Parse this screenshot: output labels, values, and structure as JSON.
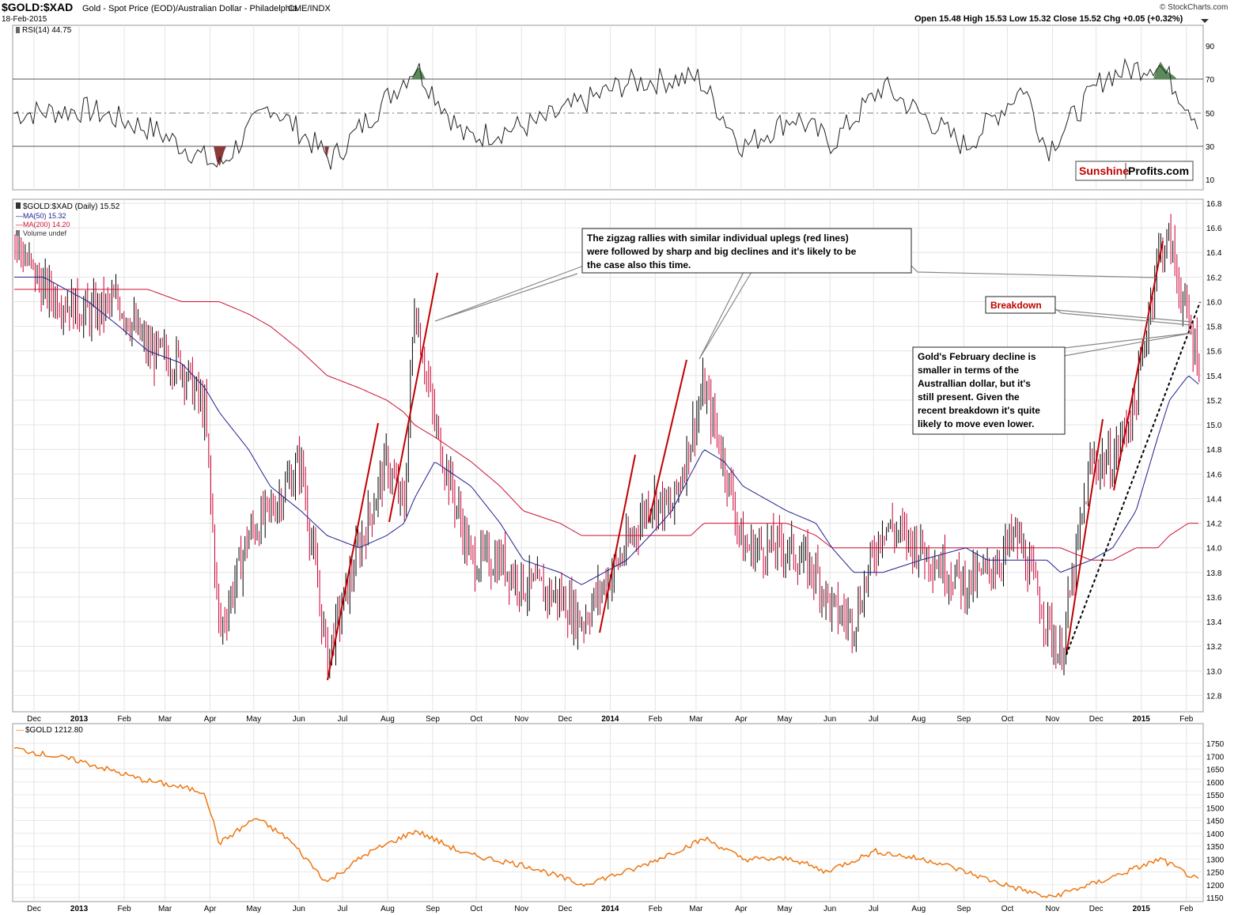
{
  "header": {
    "symbol": "$GOLD:$XAD",
    "description": "Gold - Spot Price (EOD)/Australian Dollar - Philadelphia",
    "exchange": "CME/INDX",
    "date": "18-Feb-2015",
    "ohlc": "Open 15.48  High 15.53  Low 15.32  Close 15.52  Chg +0.05 (+0.32%)",
    "watermark": "© StockCharts.com"
  },
  "rsi_panel": {
    "legend": "RSI(14) 44.75",
    "ticks": [
      "90",
      "70",
      "50",
      "30",
      "10"
    ],
    "logo_red": "Sunshine",
    "logo_black": "Profits.com"
  },
  "price_panel": {
    "legend_main": "$GOLD:$XAD (Daily) 15.52",
    "legend_ma50": "MA(50) 15.32",
    "legend_ma200": "MA(200) 14.20",
    "legend_volume": "Volume undef",
    "ticks": [
      "16.8",
      "16.6",
      "16.4",
      "16.2",
      "16.0",
      "15.8",
      "15.6",
      "15.4",
      "15.2",
      "15.0",
      "14.8",
      "14.6",
      "14.4",
      "14.2",
      "14.0",
      "13.8",
      "13.6",
      "13.4",
      "13.2",
      "13.0",
      "12.8"
    ]
  },
  "gold_panel": {
    "legend": "$GOLD 1212.80",
    "ticks": [
      "1750",
      "1700",
      "1650",
      "1600",
      "1550",
      "1500",
      "1450",
      "1400",
      "1350",
      "1300",
      "1250",
      "1200",
      "1150"
    ]
  },
  "months": [
    "Dec",
    "2013",
    "Feb",
    "Mar",
    "Apr",
    "May",
    "Jun",
    "Jul",
    "Aug",
    "Sep",
    "Oct",
    "Nov",
    "Dec",
    "2014",
    "Feb",
    "Mar",
    "Apr",
    "May",
    "Jun",
    "Jul",
    "Aug",
    "Sep",
    "Oct",
    "Nov",
    "Dec",
    "2015",
    "Feb"
  ],
  "annotations": {
    "zigzag_line1": "The zigzag rallies with similar individual uplegs (red lines)",
    "zigzag_line2": "were followed by sharp and big declines and it's likely to be",
    "zigzag_line3": "the case also this time.",
    "breakdown": "Breakdown",
    "feb_line1": "Gold's February decline is",
    "feb_line2": "smaller in terms of the",
    "feb_line3": "Australlian dollar, but it's",
    "feb_line4": "still present. Given the",
    "feb_line5": "recent breakdown it's quite",
    "feb_line6": "likely to move even lower."
  },
  "colors": {
    "up": "#000000",
    "down": "#cc0033",
    "ma50": "#1f1f8f",
    "ma200": "#cc1133",
    "gold": "#ee7711",
    "rsi_fill": "#5a8a5a",
    "rsi_low_fill": "#8b3a3a",
    "annotation_red": "#c00000"
  },
  "chart_data": [
    {
      "type": "line",
      "title": "RSI(14)",
      "ylim": [
        0,
        100
      ],
      "reference_lines": [
        70,
        50,
        30
      ],
      "series": [
        {
          "name": "RSI(14)",
          "x": [
            "2012-12-01",
            "2013-01-15",
            "2013-03-01",
            "2013-04-15",
            "2013-05-20",
            "2013-07-01",
            "2013-08-28",
            "2013-10-01",
            "2013-11-20",
            "2014-01-20",
            "2014-03-10",
            "2014-04-10",
            "2014-05-15",
            "2014-06-10",
            "2014-07-15",
            "2014-09-10",
            "2014-10-20",
            "2014-11-05",
            "2014-12-15",
            "2015-01-20",
            "2015-02-18"
          ],
          "values": [
            50,
            52,
            40,
            18,
            55,
            22,
            78,
            35,
            44,
            68,
            71,
            30,
            48,
            32,
            66,
            30,
            66,
            28,
            72,
            80,
            44.75
          ]
        }
      ]
    },
    {
      "type": "line",
      "title": "$GOLD:$XAD (Daily)",
      "ylim": [
        12.7,
        16.8
      ],
      "x": [
        "2012-11-25",
        "2012-12-15",
        "2013-01-15",
        "2013-02-05",
        "2013-02-25",
        "2013-03-20",
        "2013-04-05",
        "2013-04-15",
        "2013-05-05",
        "2013-05-20",
        "2013-06-10",
        "2013-06-28",
        "2013-07-20",
        "2013-08-08",
        "2013-08-20",
        "2013-08-27",
        "2013-09-10",
        "2013-10-05",
        "2013-10-25",
        "2013-11-10",
        "2013-12-05",
        "2013-12-20",
        "2014-01-20",
        "2014-02-05",
        "2014-02-20",
        "2014-03-05",
        "2014-03-14",
        "2014-03-28",
        "2014-04-10",
        "2014-05-10",
        "2014-05-30",
        "2014-06-10",
        "2014-06-25",
        "2014-07-15",
        "2014-08-10",
        "2014-09-10",
        "2014-09-25",
        "2014-10-15",
        "2014-11-05",
        "2014-11-14",
        "2014-12-05",
        "2014-12-20",
        "2015-01-05",
        "2015-01-20",
        "2015-01-28",
        "2015-02-10",
        "2015-02-18"
      ],
      "series": [
        {
          "name": "$GOLD:$XAD",
          "values": [
            16.5,
            16.1,
            15.9,
            16.0,
            15.6,
            15.5,
            15.1,
            13.3,
            14.1,
            14.3,
            14.7,
            13.1,
            14.0,
            14.7,
            14.3,
            16.0,
            15.0,
            13.9,
            13.9,
            13.7,
            13.6,
            13.4,
            14.0,
            14.4,
            14.3,
            14.9,
            15.3,
            14.7,
            14.0,
            14.0,
            13.8,
            13.5,
            13.4,
            14.2,
            14.0,
            13.7,
            13.8,
            14.1,
            13.4,
            13.1,
            14.7,
            14.7,
            15.2,
            16.4,
            16.5,
            15.8,
            15.52
          ]
        },
        {
          "name": "MA(50)",
          "values": [
            16.2,
            16.2,
            16.0,
            15.8,
            15.6,
            15.5,
            15.3,
            15.1,
            14.8,
            14.5,
            14.3,
            14.1,
            14.0,
            14.1,
            14.2,
            14.4,
            14.7,
            14.5,
            14.2,
            13.9,
            13.8,
            13.7,
            13.9,
            14.1,
            14.3,
            14.6,
            14.8,
            14.7,
            14.5,
            14.3,
            14.2,
            14.0,
            13.8,
            13.8,
            13.9,
            14.0,
            13.9,
            13.9,
            13.9,
            13.8,
            13.9,
            14.0,
            14.3,
            14.9,
            15.2,
            15.4,
            15.32
          ]
        },
        {
          "name": "MA(200)",
          "values": [
            16.1,
            16.1,
            16.1,
            16.1,
            16.1,
            16.0,
            16.0,
            16.0,
            15.9,
            15.8,
            15.6,
            15.4,
            15.3,
            15.2,
            15.1,
            15.0,
            14.9,
            14.7,
            14.5,
            14.3,
            14.2,
            14.1,
            14.1,
            14.1,
            14.1,
            14.1,
            14.2,
            14.2,
            14.2,
            14.2,
            14.1,
            14.0,
            14.0,
            14.0,
            14.0,
            14.0,
            14.0,
            14.0,
            14.0,
            14.0,
            13.9,
            13.9,
            14.0,
            14.0,
            14.1,
            14.2,
            14.2
          ]
        }
      ]
    },
    {
      "type": "line",
      "title": "$GOLD",
      "ylim": [
        1150,
        1750
      ],
      "x": [
        "2012-11-25",
        "2013-01-10",
        "2013-02-20",
        "2013-03-10",
        "2013-04-05",
        "2013-04-15",
        "2013-05-10",
        "2013-06-01",
        "2013-06-28",
        "2013-07-25",
        "2013-08-28",
        "2013-10-01",
        "2013-11-15",
        "2013-12-20",
        "2014-01-25",
        "2014-03-15",
        "2014-04-10",
        "2014-05-15",
        "2014-06-05",
        "2014-07-10",
        "2014-08-20",
        "2014-10-01",
        "2014-11-06",
        "2014-12-10",
        "2015-01-22",
        "2015-02-18"
      ],
      "series": [
        {
          "name": "$GOLD",
          "values": [
            1730,
            1680,
            1610,
            1590,
            1560,
            1360,
            1460,
            1380,
            1210,
            1320,
            1410,
            1320,
            1270,
            1200,
            1260,
            1380,
            1300,
            1300,
            1250,
            1330,
            1290,
            1210,
            1150,
            1210,
            1300,
            1212.8
          ]
        }
      ]
    }
  ]
}
